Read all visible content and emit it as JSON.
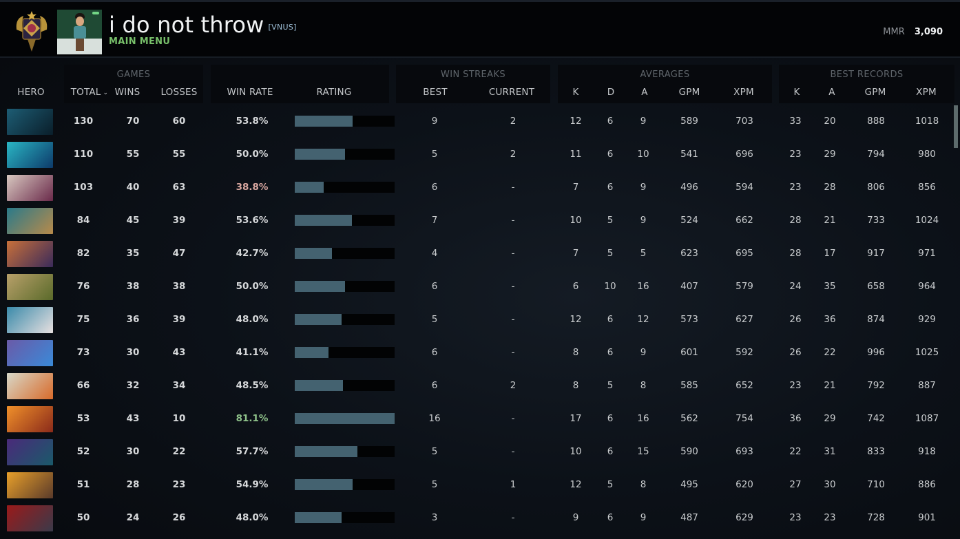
{
  "header": {
    "username": "i do not throw",
    "clan_tag": "[VNUS]",
    "nav_label": "MAIN MENU",
    "mmr_label": "MMR",
    "mmr_value": "3,090"
  },
  "colors": {
    "win_rate_high": "#8fc28a",
    "win_rate_low": "#d9a7a0",
    "win_rate_normal": "#d6d8da",
    "rating_bar": "#446270",
    "accent_green": "#78c06a"
  },
  "groups": {
    "games": "GAMES",
    "win_streaks": "WIN STREAKS",
    "averages": "AVERAGES",
    "best_records": "BEST RECORDS"
  },
  "columns": {
    "hero": "HERO",
    "total": "TOTAL",
    "wins": "WINS",
    "losses": "LOSSES",
    "win_rate": "WIN RATE",
    "rating": "RATING",
    "best": "BEST",
    "current": "CURRENT",
    "avg_k": "K",
    "avg_d": "D",
    "avg_a": "A",
    "avg_gpm": "GPM",
    "avg_xpm": "XPM",
    "rec_k": "K",
    "rec_a": "A",
    "rec_gpm": "GPM",
    "rec_xpm": "XPM"
  },
  "rows": [
    {
      "hero": "phantom-assassin",
      "portrait": [
        "#1d5d74",
        "#0a1e2a"
      ],
      "total": "130",
      "wins": "70",
      "losses": "60",
      "win_rate": "53.8%",
      "wr_tone": "normal",
      "rating": 58,
      "best": "9",
      "current": "2",
      "k": "12",
      "d": "6",
      "a": "9",
      "gpm": "589",
      "xpm": "703",
      "rk": "33",
      "ra": "20",
      "rgpm": "888",
      "rxpm": "1018"
    },
    {
      "hero": "storm-spirit",
      "portrait": [
        "#2ab6c4",
        "#0d3a6a"
      ],
      "total": "110",
      "wins": "55",
      "losses": "55",
      "win_rate": "50.0%",
      "wr_tone": "normal",
      "rating": 50,
      "best": "5",
      "current": "2",
      "k": "11",
      "d": "6",
      "a": "10",
      "gpm": "541",
      "xpm": "696",
      "rk": "23",
      "ra": "29",
      "rgpm": "794",
      "rxpm": "980"
    },
    {
      "hero": "invoker",
      "portrait": [
        "#d8c8c0",
        "#6a2a4a"
      ],
      "total": "103",
      "wins": "40",
      "losses": "63",
      "win_rate": "38.8%",
      "wr_tone": "low",
      "rating": 29,
      "best": "6",
      "current": "-",
      "k": "7",
      "d": "6",
      "a": "9",
      "gpm": "496",
      "xpm": "594",
      "rk": "23",
      "ra": "28",
      "rgpm": "806",
      "rxpm": "856"
    },
    {
      "hero": "slark",
      "portrait": [
        "#2a7a8a",
        "#b88a4a"
      ],
      "total": "84",
      "wins": "45",
      "losses": "39",
      "win_rate": "53.6%",
      "wr_tone": "normal",
      "rating": 57,
      "best": "7",
      "current": "-",
      "k": "10",
      "d": "5",
      "a": "9",
      "gpm": "524",
      "xpm": "662",
      "rk": "28",
      "ra": "21",
      "rgpm": "733",
      "rxpm": "1024"
    },
    {
      "hero": "anti-mage",
      "portrait": [
        "#c8703a",
        "#3a2a5a"
      ],
      "total": "82",
      "wins": "35",
      "losses": "47",
      "win_rate": "42.7%",
      "wr_tone": "normal",
      "rating": 37,
      "best": "4",
      "current": "-",
      "k": "7",
      "d": "5",
      "a": "5",
      "gpm": "623",
      "xpm": "695",
      "rk": "28",
      "ra": "17",
      "rgpm": "917",
      "rxpm": "971"
    },
    {
      "hero": "pudge",
      "portrait": [
        "#b8a06a",
        "#5a6a2a"
      ],
      "total": "76",
      "wins": "38",
      "losses": "38",
      "win_rate": "50.0%",
      "wr_tone": "normal",
      "rating": 50,
      "best": "6",
      "current": "-",
      "k": "6",
      "d": "10",
      "a": "16",
      "gpm": "407",
      "xpm": "579",
      "rk": "24",
      "ra": "35",
      "rgpm": "658",
      "rxpm": "964"
    },
    {
      "hero": "sniper",
      "portrait": [
        "#3a8aaa",
        "#e8e0e0"
      ],
      "total": "75",
      "wins": "36",
      "losses": "39",
      "win_rate": "48.0%",
      "wr_tone": "normal",
      "rating": 47,
      "best": "5",
      "current": "-",
      "k": "12",
      "d": "6",
      "a": "12",
      "gpm": "573",
      "xpm": "627",
      "rk": "26",
      "ra": "36",
      "rgpm": "874",
      "rxpm": "929"
    },
    {
      "hero": "arc-warden",
      "portrait": [
        "#6a5aa8",
        "#3a8ad8"
      ],
      "total": "73",
      "wins": "30",
      "losses": "43",
      "win_rate": "41.1%",
      "wr_tone": "normal",
      "rating": 34,
      "best": "6",
      "current": "-",
      "k": "8",
      "d": "6",
      "a": "9",
      "gpm": "601",
      "xpm": "592",
      "rk": "26",
      "ra": "22",
      "rgpm": "996",
      "rxpm": "1025"
    },
    {
      "hero": "juggernaut",
      "portrait": [
        "#d8d8c8",
        "#d86a2a"
      ],
      "total": "66",
      "wins": "32",
      "losses": "34",
      "win_rate": "48.5%",
      "wr_tone": "normal",
      "rating": 48,
      "best": "6",
      "current": "2",
      "k": "8",
      "d": "5",
      "a": "8",
      "gpm": "585",
      "xpm": "652",
      "rk": "23",
      "ra": "21",
      "rgpm": "792",
      "rxpm": "887"
    },
    {
      "hero": "phoenix",
      "portrait": [
        "#f0902a",
        "#8a2a1a"
      ],
      "total": "53",
      "wins": "43",
      "losses": "10",
      "win_rate": "81.1%",
      "wr_tone": "high",
      "rating": 100,
      "best": "16",
      "current": "-",
      "k": "17",
      "d": "6",
      "a": "16",
      "gpm": "562",
      "xpm": "754",
      "rk": "36",
      "ra": "29",
      "rgpm": "742",
      "rxpm": "1087"
    },
    {
      "hero": "spectre",
      "portrait": [
        "#4a2a7a",
        "#1a5a6a"
      ],
      "total": "52",
      "wins": "30",
      "losses": "22",
      "win_rate": "57.7%",
      "wr_tone": "normal",
      "rating": 63,
      "best": "5",
      "current": "-",
      "k": "10",
      "d": "6",
      "a": "15",
      "gpm": "590",
      "xpm": "693",
      "rk": "22",
      "ra": "31",
      "rgpm": "833",
      "rxpm": "918"
    },
    {
      "hero": "clinkz",
      "portrait": [
        "#e8a02a",
        "#5a3a2a"
      ],
      "total": "51",
      "wins": "28",
      "losses": "23",
      "win_rate": "54.9%",
      "wr_tone": "normal",
      "rating": 58,
      "best": "5",
      "current": "1",
      "k": "12",
      "d": "5",
      "a": "8",
      "gpm": "495",
      "xpm": "620",
      "rk": "27",
      "ra": "30",
      "rgpm": "710",
      "rxpm": "886"
    },
    {
      "hero": "queen-of-pain",
      "portrait": [
        "#9a1a1a",
        "#3a3a4a"
      ],
      "total": "50",
      "wins": "24",
      "losses": "26",
      "win_rate": "48.0%",
      "wr_tone": "normal",
      "rating": 47,
      "best": "3",
      "current": "-",
      "k": "9",
      "d": "6",
      "a": "9",
      "gpm": "487",
      "xpm": "629",
      "rk": "23",
      "ra": "23",
      "rgpm": "728",
      "rxpm": "901"
    }
  ]
}
